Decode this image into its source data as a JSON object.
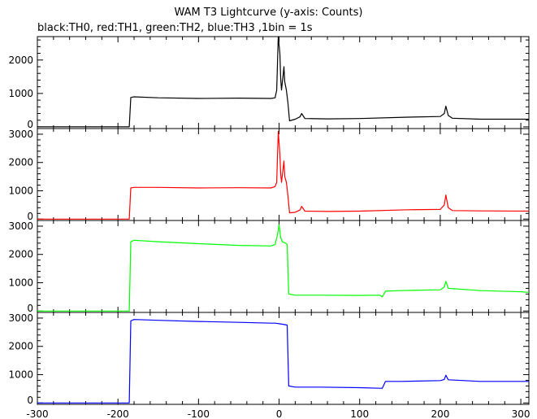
{
  "chart_data": {
    "type": "line",
    "title": "WAM T3 Lightcurve (y-axis: Counts)",
    "subtitle": "black:TH0, red:TH1, green:TH2, blue:TH3 ,1bin = 1s",
    "xlim": [
      -300,
      310
    ],
    "x_ticks": [
      "-300",
      "-200",
      "-100",
      "0",
      "100",
      "200",
      "300"
    ],
    "grid": false,
    "panels": [
      {
        "name": "TH0",
        "color": "#000000",
        "ylim": [
          -50,
          2700
        ],
        "y_ticks": [
          "0",
          "1000",
          "2000"
        ],
        "points": [
          [
            -300,
            0
          ],
          [
            -186,
            0
          ],
          [
            -184,
            880
          ],
          [
            -180,
            900
          ],
          [
            -150,
            870
          ],
          [
            -100,
            850
          ],
          [
            -50,
            860
          ],
          [
            -10,
            850
          ],
          [
            -5,
            870
          ],
          [
            -3,
            1100
          ],
          [
            -1,
            2700
          ],
          [
            1,
            2200
          ],
          [
            2,
            1450
          ],
          [
            3,
            1100
          ],
          [
            5,
            1550
          ],
          [
            6,
            1800
          ],
          [
            7,
            1350
          ],
          [
            9,
            1100
          ],
          [
            11,
            700
          ],
          [
            13,
            180
          ],
          [
            20,
            230
          ],
          [
            26,
            300
          ],
          [
            28,
            400
          ],
          [
            32,
            250
          ],
          [
            60,
            240
          ],
          [
            100,
            250
          ],
          [
            160,
            290
          ],
          [
            200,
            310
          ],
          [
            205,
            400
          ],
          [
            207,
            620
          ],
          [
            210,
            340
          ],
          [
            215,
            260
          ],
          [
            250,
            230
          ],
          [
            310,
            230
          ]
        ]
      },
      {
        "name": "TH1",
        "color": "#ff0000",
        "ylim": [
          -50,
          3200
        ],
        "y_ticks": [
          "0",
          "1000",
          "2000",
          "3000"
        ],
        "points": [
          [
            -300,
            0
          ],
          [
            -186,
            0
          ],
          [
            -184,
            1100
          ],
          [
            -180,
            1120
          ],
          [
            -150,
            1120
          ],
          [
            -100,
            1100
          ],
          [
            -50,
            1110
          ],
          [
            -10,
            1100
          ],
          [
            -5,
            1150
          ],
          [
            -3,
            1300
          ],
          [
            -1,
            3100
          ],
          [
            1,
            2300
          ],
          [
            2,
            1600
          ],
          [
            3,
            1300
          ],
          [
            5,
            1800
          ],
          [
            6,
            2050
          ],
          [
            7,
            1500
          ],
          [
            9,
            1300
          ],
          [
            11,
            800
          ],
          [
            13,
            220
          ],
          [
            20,
            240
          ],
          [
            26,
            320
          ],
          [
            28,
            450
          ],
          [
            32,
            280
          ],
          [
            60,
            270
          ],
          [
            100,
            280
          ],
          [
            160,
            330
          ],
          [
            200,
            340
          ],
          [
            205,
            500
          ],
          [
            207,
            850
          ],
          [
            210,
            400
          ],
          [
            215,
            300
          ],
          [
            250,
            290
          ],
          [
            310,
            280
          ]
        ]
      },
      {
        "name": "TH2",
        "color": "#00ff00",
        "ylim": [
          -50,
          3200
        ],
        "y_ticks": [
          "0",
          "1000",
          "2000",
          "3000"
        ],
        "points": [
          [
            -300,
            0
          ],
          [
            -186,
            0
          ],
          [
            -184,
            2450
          ],
          [
            -180,
            2500
          ],
          [
            -150,
            2450
          ],
          [
            -100,
            2380
          ],
          [
            -50,
            2320
          ],
          [
            -10,
            2300
          ],
          [
            -5,
            2350
          ],
          [
            -2,
            2700
          ],
          [
            0,
            3050
          ],
          [
            2,
            2600
          ],
          [
            4,
            2450
          ],
          [
            8,
            2400
          ],
          [
            10,
            2350
          ],
          [
            12,
            600
          ],
          [
            20,
            560
          ],
          [
            50,
            560
          ],
          [
            100,
            550
          ],
          [
            125,
            560
          ],
          [
            128,
            500
          ],
          [
            132,
            700
          ],
          [
            150,
            720
          ],
          [
            200,
            750
          ],
          [
            205,
            850
          ],
          [
            207,
            1050
          ],
          [
            210,
            800
          ],
          [
            250,
            720
          ],
          [
            300,
            680
          ],
          [
            310,
            660
          ]
        ]
      },
      {
        "name": "TH3",
        "color": "#0000ff",
        "ylim": [
          -50,
          3200
        ],
        "y_ticks": [
          "0",
          "1000",
          "2000",
          "3000"
        ],
        "points": [
          [
            -300,
            0
          ],
          [
            -186,
            0
          ],
          [
            -184,
            2900
          ],
          [
            -180,
            2950
          ],
          [
            -150,
            2920
          ],
          [
            -100,
            2880
          ],
          [
            -50,
            2850
          ],
          [
            -10,
            2820
          ],
          [
            -5,
            2820
          ],
          [
            0,
            2800
          ],
          [
            5,
            2780
          ],
          [
            10,
            2750
          ],
          [
            12,
            600
          ],
          [
            20,
            560
          ],
          [
            50,
            560
          ],
          [
            100,
            540
          ],
          [
            125,
            520
          ],
          [
            128,
            520
          ],
          [
            132,
            760
          ],
          [
            150,
            760
          ],
          [
            200,
            790
          ],
          [
            205,
            830
          ],
          [
            207,
            980
          ],
          [
            210,
            820
          ],
          [
            250,
            760
          ],
          [
            300,
            760
          ],
          [
            310,
            760
          ]
        ]
      }
    ]
  }
}
